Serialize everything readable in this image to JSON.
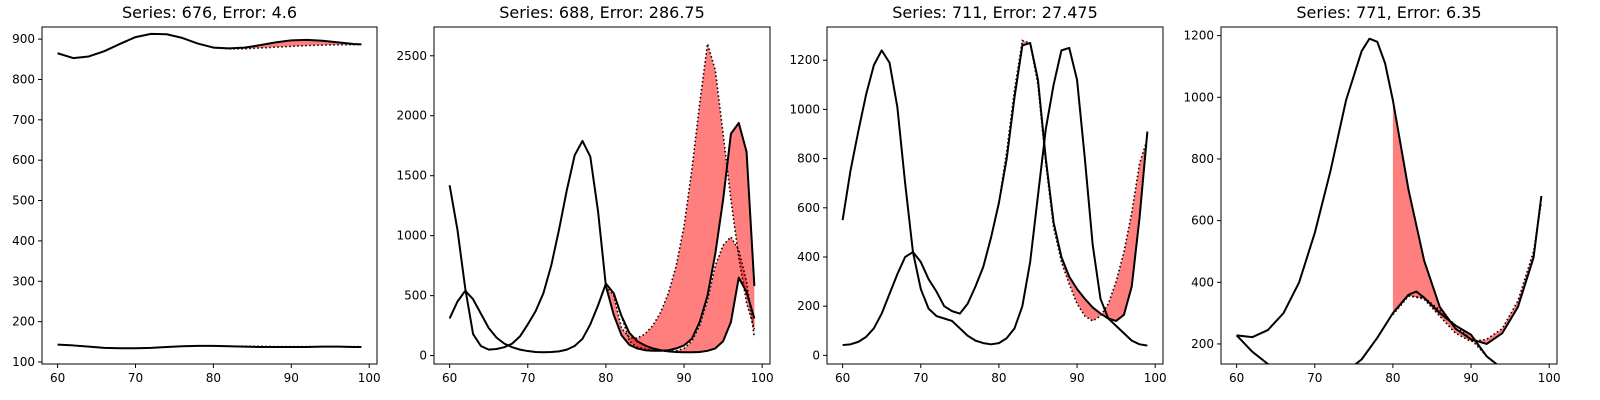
{
  "chart_data": [
    {
      "type": "line",
      "title": "Series: 676, Error: 4.6",
      "xlim": [
        58,
        101
      ],
      "ylim": [
        95,
        930
      ],
      "xticks": [
        60,
        70,
        80,
        90,
        100
      ],
      "yticks": [
        100,
        200,
        300,
        400,
        500,
        600,
        700,
        800,
        900
      ],
      "series": [
        {
          "role": "actual",
          "x": [
            60,
            62,
            64,
            66,
            68,
            70,
            72,
            74,
            76,
            78,
            80,
            82,
            84,
            86,
            88,
            90,
            92,
            94,
            96,
            98,
            99
          ],
          "y": [
            865,
            853,
            857,
            870,
            888,
            905,
            913,
            912,
            903,
            889,
            879,
            877,
            879,
            885,
            892,
            897,
            898,
            896,
            892,
            888,
            887
          ]
        },
        {
          "role": "predicted",
          "x": [
            80,
            82,
            84,
            86,
            88,
            90,
            92,
            94,
            96,
            98,
            99
          ],
          "y": [
            879,
            876,
            876,
            878,
            880,
            882,
            884,
            885,
            886,
            886,
            887
          ]
        },
        {
          "role": "actual",
          "x": [
            60,
            62,
            64,
            66,
            68,
            70,
            72,
            74,
            76,
            78,
            80,
            82,
            84,
            86,
            88,
            90,
            92,
            94,
            96,
            98,
            99
          ],
          "y": [
            143,
            141,
            138,
            135,
            134,
            134,
            135,
            137,
            139,
            140,
            140,
            139,
            138,
            137,
            137,
            137,
            137,
            138,
            138,
            137,
            137
          ]
        },
        {
          "role": "predicted",
          "x": [
            80,
            82,
            84,
            86,
            88,
            90,
            92,
            94,
            96,
            98,
            99
          ],
          "y": [
            140,
            139,
            139,
            139,
            138,
            138,
            138,
            138,
            138,
            138,
            138
          ]
        }
      ]
    },
    {
      "type": "line",
      "title": "Series: 688, Error: 286.75",
      "xlim": [
        58,
        101
      ],
      "ylim": [
        -70,
        2740
      ],
      "xticks": [
        60,
        70,
        80,
        90,
        100
      ],
      "yticks": [
        0,
        500,
        1000,
        1500,
        2000,
        2500
      ],
      "series": [
        {
          "role": "actual",
          "x": [
            60,
            61,
            62,
            63,
            64,
            65,
            66,
            67,
            68,
            69,
            70,
            71,
            72,
            73,
            74,
            75,
            76,
            77,
            78,
            79,
            80,
            81,
            82,
            83,
            84,
            85,
            86,
            87,
            88,
            89,
            90,
            91,
            92,
            93,
            94,
            95,
            96,
            97,
            98,
            99
          ],
          "y": [
            1420,
            1050,
            560,
            180,
            80,
            50,
            55,
            70,
            100,
            160,
            260,
            370,
            520,
            750,
            1050,
            1380,
            1670,
            1790,
            1660,
            1200,
            580,
            340,
            170,
            90,
            60,
            45,
            40,
            40,
            45,
            60,
            85,
            140,
            280,
            500,
            850,
            1300,
            1850,
            1940,
            1700,
            580
          ]
        },
        {
          "role": "actual",
          "x": [
            60,
            61,
            62,
            63,
            64,
            65,
            66,
            67,
            68,
            69,
            70,
            71,
            72,
            73,
            74,
            75,
            76,
            77,
            78,
            79,
            80,
            81,
            82,
            83,
            84,
            85,
            86,
            87,
            88,
            89,
            90,
            91,
            92,
            93,
            94,
            95,
            96,
            97,
            98,
            99
          ],
          "y": [
            310,
            450,
            540,
            470,
            350,
            230,
            150,
            100,
            70,
            50,
            38,
            30,
            28,
            30,
            35,
            50,
            80,
            140,
            260,
            420,
            600,
            520,
            330,
            190,
            120,
            85,
            60,
            45,
            35,
            30,
            28,
            28,
            30,
            40,
            60,
            120,
            280,
            650,
            530,
            310
          ]
        },
        {
          "role": "predicted",
          "x": [
            80,
            81,
            82,
            83,
            84,
            85,
            86,
            87,
            88,
            89,
            90,
            91,
            92,
            93,
            94,
            95,
            96,
            97,
            98,
            99
          ],
          "y": [
            580,
            500,
            230,
            150,
            145,
            180,
            250,
            360,
            520,
            750,
            1080,
            1550,
            2100,
            2600,
            2380,
            1850,
            1300,
            820,
            440,
            220
          ]
        },
        {
          "role": "predicted",
          "x": [
            80,
            81,
            82,
            83,
            84,
            85,
            86,
            87,
            88,
            89,
            90,
            91,
            92,
            93,
            94,
            95,
            96,
            97,
            98,
            99
          ],
          "y": [
            600,
            520,
            330,
            120,
            70,
            55,
            45,
            40,
            35,
            40,
            60,
            120,
            250,
            460,
            750,
            920,
            990,
            880,
            620,
            150
          ]
        }
      ]
    },
    {
      "type": "line",
      "title": "Series: 711, Error: 27.475",
      "xlim": [
        58,
        101
      ],
      "ylim": [
        -35,
        1335
      ],
      "xticks": [
        60,
        70,
        80,
        90,
        100
      ],
      "yticks": [
        0,
        200,
        400,
        600,
        800,
        1000,
        1200
      ],
      "series": [
        {
          "role": "actual",
          "x": [
            60,
            61,
            62,
            63,
            64,
            65,
            66,
            67,
            68,
            69,
            70,
            71,
            72,
            73,
            74,
            75,
            76,
            77,
            78,
            79,
            80,
            81,
            82,
            83,
            84,
            85,
            86,
            87,
            88,
            89,
            90,
            91,
            92,
            93,
            94,
            95,
            96,
            97,
            98,
            99
          ],
          "y": [
            550,
            750,
            910,
            1060,
            1180,
            1240,
            1190,
            1010,
            700,
            420,
            270,
            190,
            160,
            150,
            140,
            110,
            80,
            60,
            50,
            45,
            50,
            70,
            110,
            200,
            380,
            650,
            920,
            1100,
            1240,
            1250,
            1120,
            800,
            450,
            230,
            150,
            120,
            90,
            60,
            45,
            40
          ]
        },
        {
          "role": "actual",
          "x": [
            60,
            61,
            62,
            63,
            64,
            65,
            66,
            67,
            68,
            69,
            70,
            71,
            72,
            73,
            74,
            75,
            76,
            77,
            78,
            79,
            80,
            81,
            82,
            83,
            84,
            85,
            86,
            87,
            88,
            89,
            90,
            91,
            92,
            93,
            94,
            95,
            96,
            97,
            98,
            99
          ],
          "y": [
            42,
            45,
            55,
            75,
            110,
            170,
            250,
            330,
            400,
            420,
            380,
            310,
            260,
            200,
            180,
            170,
            210,
            280,
            360,
            480,
            620,
            800,
            1050,
            1260,
            1270,
            1120,
            800,
            540,
            400,
            320,
            270,
            230,
            195,
            170,
            150,
            140,
            165,
            280,
            560,
            910
          ]
        },
        {
          "role": "predicted",
          "x": [
            80,
            81,
            82,
            83,
            84,
            85,
            86,
            87,
            88,
            89,
            90,
            91,
            92,
            93,
            94,
            95,
            96,
            97,
            98,
            99
          ],
          "y": [
            620,
            830,
            1080,
            1280,
            1270,
            1100,
            780,
            520,
            380,
            290,
            210,
            160,
            140,
            160,
            210,
            300,
            420,
            580,
            780,
            880
          ]
        }
      ]
    },
    {
      "type": "line",
      "title": "Series: 771, Error: 6.35",
      "xlim": [
        58,
        101
      ],
      "ylim": [
        135,
        1228
      ],
      "xticks": [
        60,
        70,
        80,
        90,
        100
      ],
      "yticks": [
        200,
        400,
        600,
        800,
        1000,
        1200
      ],
      "series": [
        {
          "role": "actual",
          "x": [
            60,
            62,
            64,
            66,
            68,
            70,
            72,
            74,
            76,
            77,
            78,
            79,
            80,
            82,
            84,
            86,
            88,
            90,
            92,
            94,
            96,
            98,
            99
          ],
          "y": [
            228,
            222,
            245,
            300,
            400,
            560,
            760,
            990,
            1150,
            1190,
            1180,
            1110,
            990,
            700,
            470,
            320,
            250,
            215,
            200,
            235,
            320,
            480,
            680
          ]
        },
        {
          "role": "actual",
          "x": [
            60,
            62,
            64,
            66,
            68,
            70,
            72,
            74,
            76,
            78,
            80,
            82,
            83,
            84,
            86,
            88,
            90,
            92,
            94,
            96,
            98,
            99
          ],
          "y": [
            228,
            175,
            135,
            105,
            88,
            82,
            88,
            110,
            150,
            220,
            300,
            360,
            370,
            350,
            300,
            260,
            230,
            160,
            120,
            90,
            75,
            72
          ]
        },
        {
          "role": "predicted",
          "x": [
            80,
            82,
            84,
            86,
            88,
            90,
            92,
            94,
            96,
            98,
            99
          ],
          "y": [
            300,
            358,
            345,
            290,
            235,
            208,
            215,
            250,
            340,
            500,
            660
          ]
        },
        {
          "role": "predicted",
          "x": [
            80,
            82,
            84,
            86,
            88,
            90,
            92,
            94,
            96,
            98,
            99
          ],
          "y": [
            295,
            355,
            350,
            310,
            260,
            215,
            160,
            115,
            90,
            74,
            70
          ]
        }
      ]
    }
  ],
  "colors": {
    "actual": "#000000",
    "predicted": "#000000",
    "error_fill": "#ff0000",
    "axes": "#000000",
    "background": "#ffffff"
  }
}
